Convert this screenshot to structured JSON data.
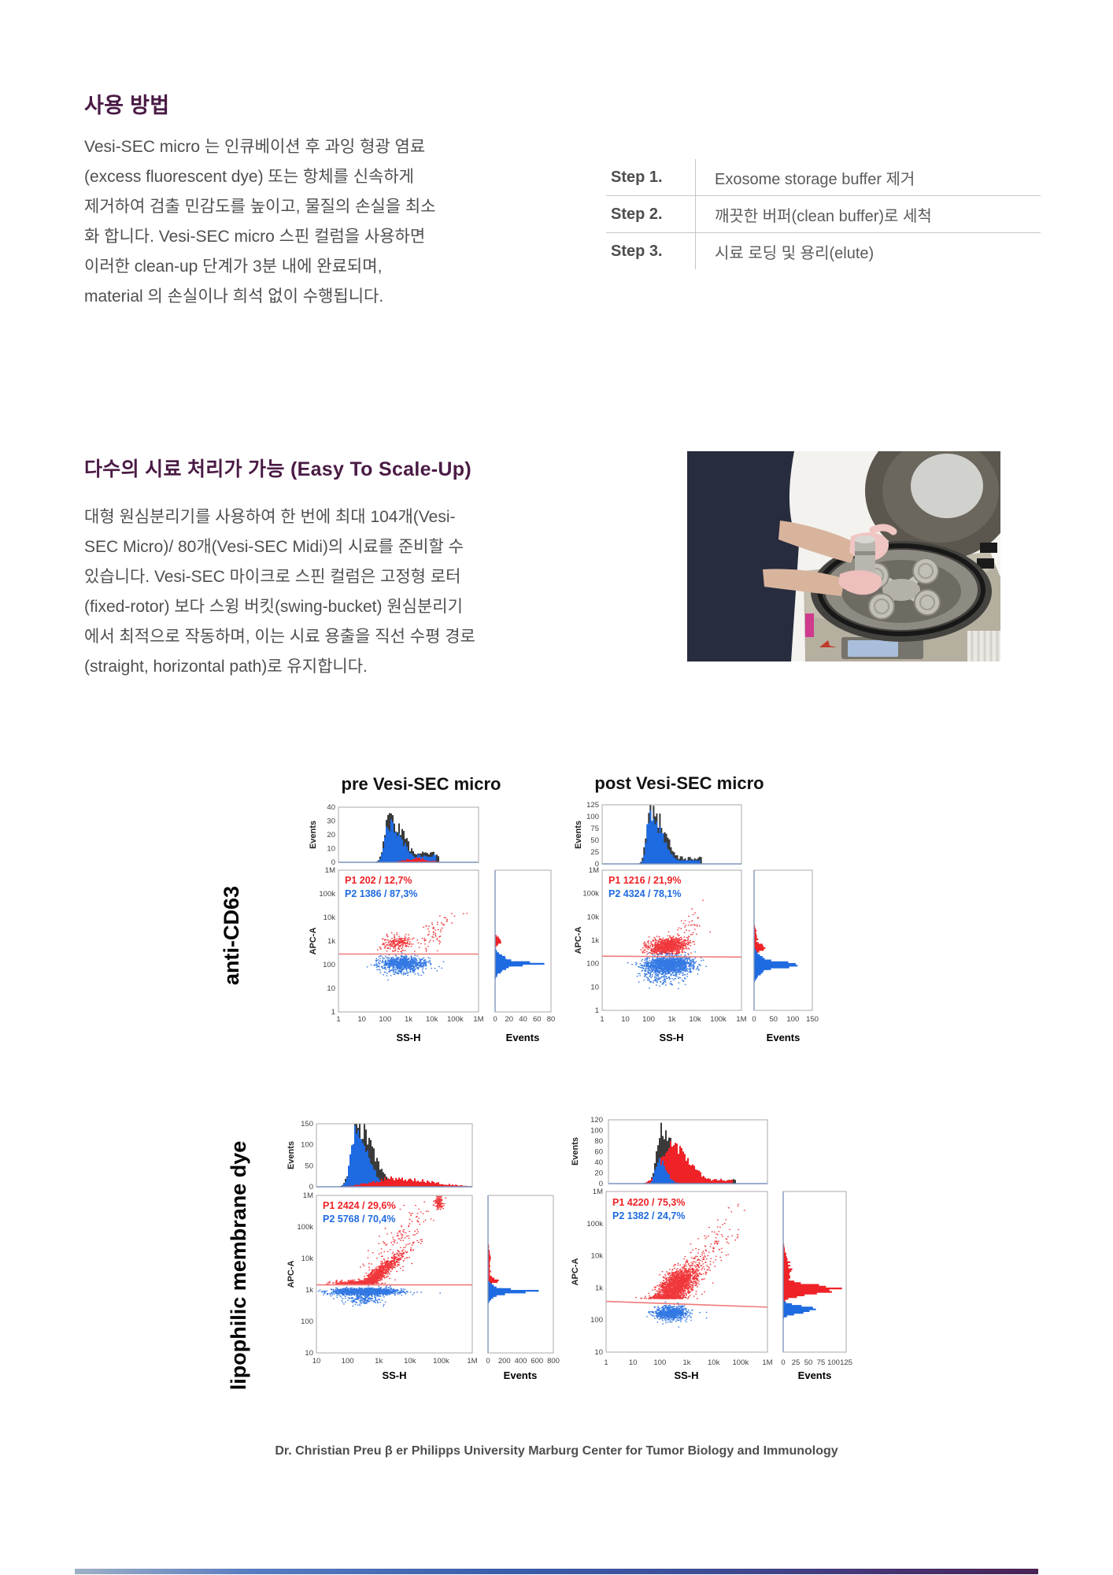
{
  "section1": {
    "heading": "사용 방법",
    "paragraph_lines": [
      "Vesi-SEC micro 는 인큐베이션 후 과잉 형광 염료",
      "(excess fluorescent dye) 또는 항체를 신속하게",
      "제거하여 검출 민감도를 높이고, 물질의 손실을 최소",
      "화 합니다. Vesi-SEC micro 스핀 컬럼을 사용하면",
      "이러한 clean-up 단계가 3분 내에 완료되며,",
      "material 의 손실이나 희석 없이 수행됩니다."
    ],
    "steps": [
      {
        "label": "Step 1.",
        "text": "Exosome storage buffer 제거"
      },
      {
        "label": "Step 2.",
        "text": "깨끗한 버퍼(clean buffer)로 세척"
      },
      {
        "label": "Step 3.",
        "text": "시료 로딩 및 용리(elute)"
      }
    ]
  },
  "section2": {
    "heading": "다수의 시료 처리가 가능 (Easy To Scale-Up)",
    "paragraph_lines": [
      "대형 원심분리기를 사용하여 한 번에 최대 104개(Vesi-",
      "SEC Micro)/ 80개(Vesi-SEC Midi)의 시료를 준비할 수",
      "있습니다. Vesi-SEC 마이크로 스핀 컬럼은 고정형 로터",
      "(fixed-rotor) 보다 스윙 버킷(swing-bucket) 원심분리기",
      "에서 최적으로 작동하며, 이는 시료 용출을 직선 수평 경로",
      "(straight, horizontal path)로 유지합니다."
    ]
  },
  "footer": "Dr. Christian Preu β er Philipps University Marburg Center for Tumor Biology and Immunology",
  "colors": {
    "heading": "#4a1b45",
    "body": "#4f4f4f",
    "chart_red": "#ee2227",
    "chart_blue": "#1e6ae0",
    "hist_dark": "#3a3a3a",
    "gate_line": "#ef7a7a",
    "frame": "#a8a8a8",
    "tick_text": "#3f3f3f"
  },
  "chart_data": [
    {
      "id": "pre-cd63",
      "type": "scatter",
      "title": "pre Vesi-SEC micro",
      "row_label": "anti-CD63",
      "x_axis": {
        "label": "SS-H",
        "ticks": [
          "1",
          "10",
          "100",
          "1k",
          "10k",
          "100k",
          "1M"
        ]
      },
      "y_axis": {
        "label": "APC-A",
        "ticks": [
          "1M",
          "100k",
          "10k",
          "1k",
          "100",
          "10",
          "1"
        ]
      },
      "top_hist": {
        "label": "Events",
        "ticks": [
          "40",
          "30",
          "20",
          "10",
          "0"
        ]
      },
      "right_hist": {
        "label": "Events",
        "ticks": [
          "0",
          "20",
          "40",
          "60",
          "80"
        ]
      },
      "gates": [
        {
          "name": "P1",
          "count": "202",
          "pct": "12,7%",
          "color": "red"
        },
        {
          "name": "P2",
          "count": "1386",
          "pct": "87,3%",
          "color": "blue"
        }
      ]
    },
    {
      "id": "post-cd63",
      "type": "scatter",
      "title": "post Vesi-SEC micro",
      "x_axis": {
        "label": "SS-H",
        "ticks": [
          "1",
          "10",
          "100",
          "1k",
          "10k",
          "100k",
          "1M"
        ]
      },
      "y_axis": {
        "label": "APC-A",
        "ticks": [
          "1M",
          "100k",
          "10k",
          "1k",
          "100",
          "10",
          "1"
        ]
      },
      "top_hist": {
        "label": "Events",
        "ticks": [
          "125",
          "100",
          "75",
          "50",
          "25",
          "0"
        ]
      },
      "right_hist": {
        "label": "Events",
        "ticks": [
          "0",
          "50",
          "100",
          "150"
        ]
      },
      "gates": [
        {
          "name": "P1",
          "count": "1216",
          "pct": "21,9%",
          "color": "red"
        },
        {
          "name": "P2",
          "count": "4324",
          "pct": "78,1%",
          "color": "blue"
        }
      ]
    },
    {
      "id": "pre-lipo",
      "type": "scatter",
      "row_label": "lipophilic membrane dye",
      "x_axis": {
        "label": "SS-H",
        "ticks": [
          "10",
          "100",
          "1k",
          "10k",
          "100k",
          "1M"
        ]
      },
      "y_axis": {
        "label": "APC-A",
        "ticks": [
          "1M",
          "100k",
          "10k",
          "1k",
          "100",
          "10"
        ]
      },
      "top_hist": {
        "label": "Events",
        "ticks": [
          "150",
          "100",
          "50",
          "0"
        ]
      },
      "right_hist": {
        "label": "Events",
        "ticks": [
          "0",
          "200",
          "400",
          "600",
          "800"
        ]
      },
      "gates": [
        {
          "name": "P1",
          "count": "2424",
          "pct": "29,6%",
          "color": "red"
        },
        {
          "name": "P2",
          "count": "5768",
          "pct": "70,4%",
          "color": "blue"
        }
      ]
    },
    {
      "id": "post-lipo",
      "type": "scatter",
      "x_axis": {
        "label": "SS-H",
        "ticks": [
          "1",
          "10",
          "100",
          "1k",
          "10k",
          "100k",
          "1M"
        ]
      },
      "y_axis": {
        "label": "APC-A",
        "ticks": [
          "1M",
          "100k",
          "10k",
          "1k",
          "100",
          "10"
        ]
      },
      "top_hist": {
        "label": "Events",
        "ticks": [
          "120",
          "100",
          "80",
          "60",
          "40",
          "20",
          "0"
        ]
      },
      "right_hist": {
        "label": "Events",
        "ticks": [
          "0",
          "25",
          "50",
          "75",
          "100",
          "125"
        ]
      },
      "gates": [
        {
          "name": "P1",
          "count": "4220",
          "pct": "75,3%",
          "color": "red"
        },
        {
          "name": "P2",
          "count": "1382",
          "pct": "24,7%",
          "color": "blue"
        }
      ]
    }
  ]
}
